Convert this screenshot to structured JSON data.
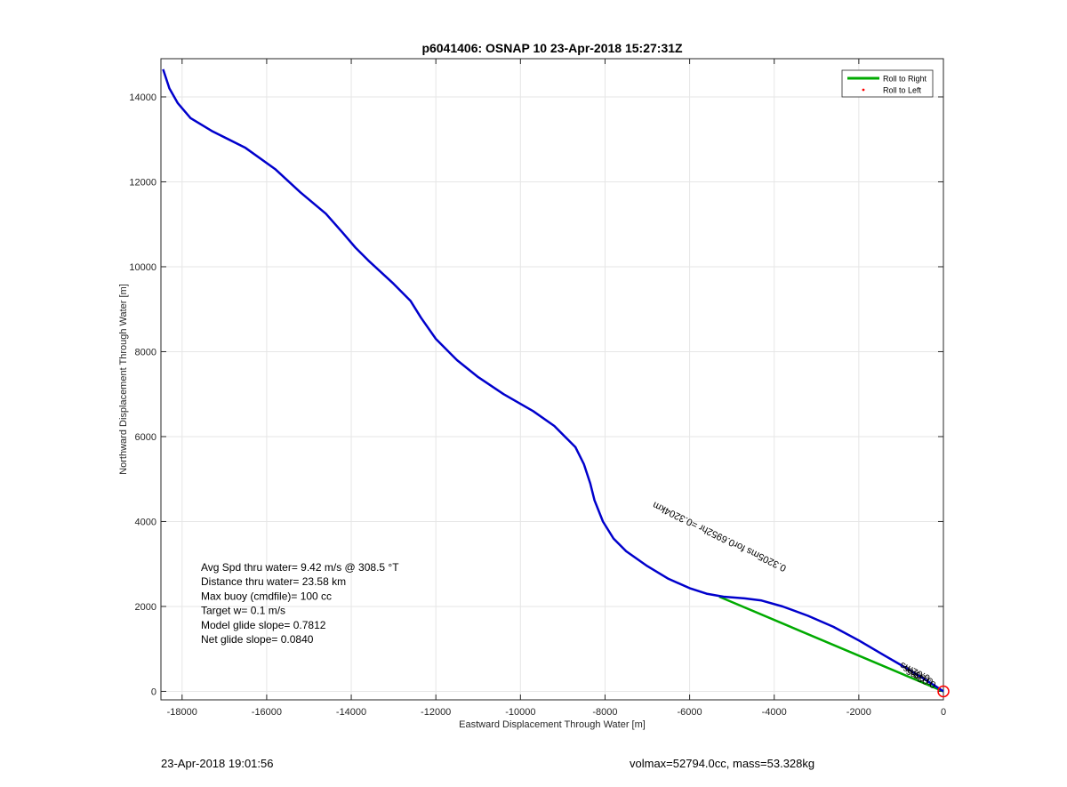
{
  "chart_data": {
    "type": "line",
    "title": "p6041406: OSNAP 10 23-Apr-2018 15:27:31Z",
    "xlabel": "Eastward Displacement Through Water [m]",
    "ylabel": "Northward Displacement Through Water [m]",
    "xlim": [
      -18500,
      0
    ],
    "ylim": [
      -200,
      14900
    ],
    "xticks": [
      -18000,
      -16000,
      -14000,
      -12000,
      -10000,
      -8000,
      -6000,
      -4000,
      -2000,
      0
    ],
    "yticks": [
      0,
      2000,
      4000,
      6000,
      8000,
      10000,
      12000,
      14000
    ],
    "grid": true,
    "legend": {
      "location": "top-right",
      "entries": [
        {
          "label": "Roll to Right",
          "color": "#00aa00",
          "style": "line"
        },
        {
          "label": "Roll to Left",
          "color": "#ff0000",
          "style": "dot"
        }
      ]
    },
    "series": [
      {
        "color": "#0000cc",
        "x": [
          -18450,
          -18300,
          -18100,
          -17800,
          -17300,
          -16500,
          -15800,
          -15200,
          -14600,
          -14200,
          -13900,
          -13600,
          -13000,
          -12600,
          -12350,
          -12000,
          -11500,
          -11000,
          -10400,
          -9700,
          -9200,
          -8900,
          -8700,
          -8500,
          -8350,
          -8250,
          -8050,
          -7800,
          -7500,
          -7000,
          -6500,
          -6000,
          -5600,
          -5200,
          -4700,
          -4300,
          -3800,
          -3200,
          -2600,
          -2000,
          -1400,
          -900,
          -500,
          -200,
          0
        ],
        "y": [
          14650,
          14200,
          13850,
          13500,
          13200,
          12800,
          12300,
          11750,
          11250,
          10800,
          10450,
          10150,
          9600,
          9200,
          8800,
          8300,
          7800,
          7400,
          7000,
          6600,
          6250,
          5950,
          5750,
          5350,
          4900,
          4500,
          4000,
          3600,
          3300,
          2950,
          2650,
          2430,
          2300,
          2230,
          2190,
          2140,
          2000,
          1780,
          1520,
          1200,
          850,
          560,
          320,
          130,
          0
        ]
      },
      {
        "color": "#00aa00",
        "x": [
          -5300,
          0
        ],
        "y": [
          2230,
          0
        ]
      }
    ],
    "end_marker": {
      "x": 0,
      "y": 0,
      "color": "#ff0000",
      "shape": "circle"
    },
    "annotations": [
      "Avg Spd thru water=  9.42 m/s @ 308.5 °T",
      "Distance thru water= 23.58 km",
      "Max buoy (cmdfile)= 100 cc",
      "Target w= 0.1 m/s",
      "Model glide slope= 0.7812",
      "Net glide slope= 0.0840"
    ],
    "rotated_annotations": [
      {
        "text": "0.3205ms for0.6952hr =0.3204km",
        "anchor_x": -3700,
        "anchor_y": 2950,
        "angle_deg": 26
      },
      {
        "text": "0.02ms",
        "anchor_x": -300,
        "anchor_y": 360,
        "angle_deg": 26
      },
      {
        "text": "0.03ms",
        "anchor_x": -230,
        "anchor_y": 280,
        "angle_deg": 26
      },
      {
        "text": "0.02ms",
        "anchor_x": -160,
        "anchor_y": 200,
        "angle_deg": 26
      }
    ]
  },
  "footer": {
    "left": "23-Apr-2018 19:01:56",
    "right": "volmax=52794.0cc, mass=53.328kg"
  }
}
